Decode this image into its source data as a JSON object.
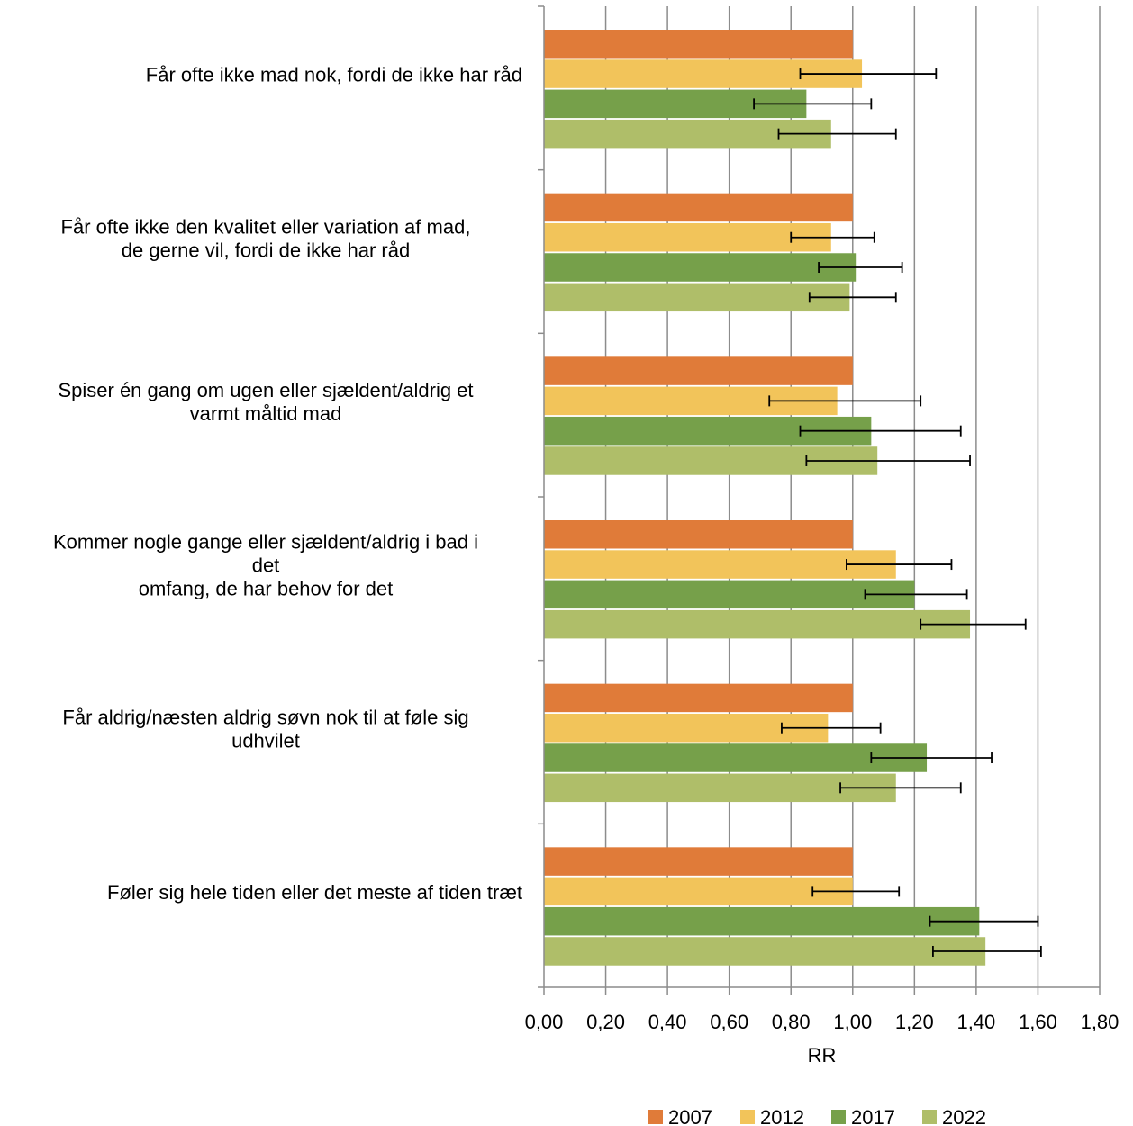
{
  "chart_data": {
    "type": "bar",
    "orientation": "horizontal",
    "title": "",
    "xlabel": "RR",
    "ylabel": "",
    "xlim": [
      0,
      1.8
    ],
    "x_ticks": [
      "0,00",
      "0,20",
      "0,40",
      "0,60",
      "0,80",
      "1,00",
      "1,20",
      "1,40",
      "1,60",
      "1,80"
    ],
    "grid": "vertical",
    "legend_position": "bottom",
    "categories": [
      [
        "Får ofte ikke mad nok, fordi de ikke har råd"
      ],
      [
        "Får ofte ikke den kvalitet eller variation af mad,",
        "de gerne vil, fordi de ikke har råd"
      ],
      [
        "Spiser én gang om ugen eller sjældent/aldrig et",
        "varmt måltid mad"
      ],
      [
        "Kommer nogle gange eller sjældent/aldrig i bad i",
        "det",
        "omfang, de har behov for det"
      ],
      [
        "Får aldrig/næsten aldrig søvn nok til at føle sig",
        "udhvilet"
      ],
      [
        "Føler sig hele tiden eller det meste af tiden træt"
      ]
    ],
    "series": [
      {
        "name": "2007",
        "color": "#E07B39",
        "values": [
          1.0,
          1.0,
          1.0,
          1.0,
          1.0,
          1.0
        ],
        "ci": [
          null,
          null,
          null,
          null,
          null,
          null
        ]
      },
      {
        "name": "2012",
        "color": "#F2C45A",
        "values": [
          1.03,
          0.93,
          0.95,
          1.14,
          0.92,
          1.0
        ],
        "ci": [
          [
            0.83,
            1.27
          ],
          [
            0.8,
            1.07
          ],
          [
            0.73,
            1.22
          ],
          [
            0.98,
            1.32
          ],
          [
            0.77,
            1.09
          ],
          [
            0.87,
            1.15
          ]
        ]
      },
      {
        "name": "2017",
        "color": "#76A04A",
        "values": [
          0.85,
          1.01,
          1.06,
          1.2,
          1.24,
          1.41
        ],
        "ci": [
          [
            0.68,
            1.06
          ],
          [
            0.89,
            1.16
          ],
          [
            0.83,
            1.35
          ],
          [
            1.04,
            1.37
          ],
          [
            1.06,
            1.45
          ],
          [
            1.25,
            1.6
          ]
        ]
      },
      {
        "name": "2022",
        "color": "#AFBE69",
        "values": [
          0.93,
          0.99,
          1.08,
          1.38,
          1.14,
          1.43
        ],
        "ci": [
          [
            0.76,
            1.14
          ],
          [
            0.86,
            1.14
          ],
          [
            0.85,
            1.38
          ],
          [
            1.22,
            1.56
          ],
          [
            0.96,
            1.35
          ],
          [
            1.26,
            1.61
          ]
        ]
      }
    ]
  }
}
